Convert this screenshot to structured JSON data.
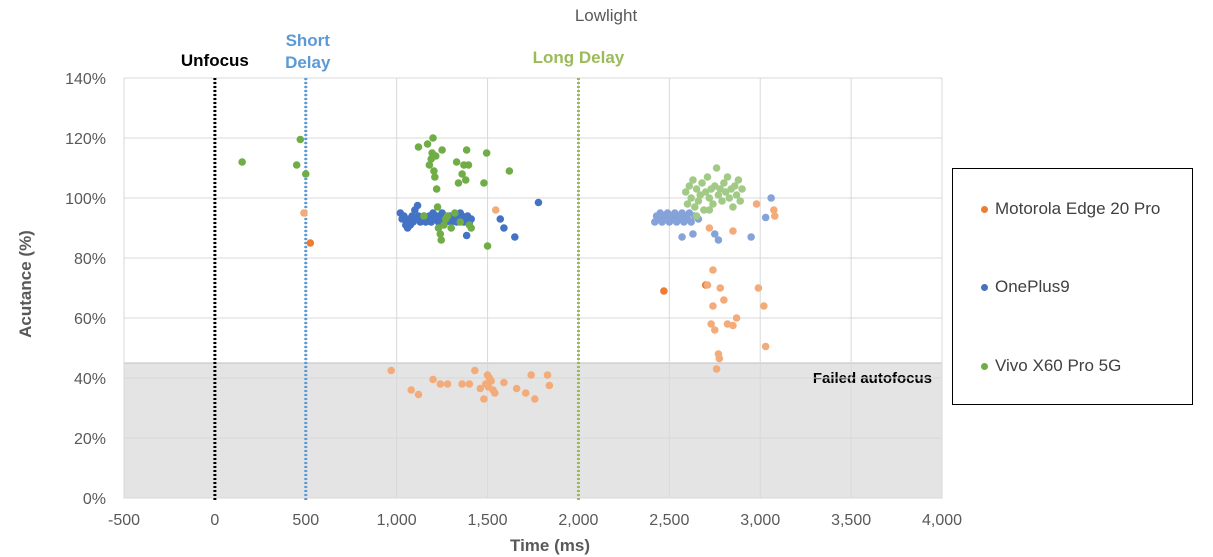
{
  "chart_data": {
    "type": "scatter",
    "title": "Lowlight",
    "xlabel": "Time (ms)",
    "ylabel": "Acutance (%)",
    "xlim": [
      -500,
      4000
    ],
    "ylim": [
      0,
      140
    ],
    "x_ticks": [
      -500,
      0,
      500,
      1000,
      1500,
      2000,
      2500,
      3000,
      3500,
      4000
    ],
    "x_tick_labels": [
      "-500",
      "0",
      "500",
      "1,000",
      "1,500",
      "2,000",
      "2,500",
      "3,000",
      "3,500",
      "4,000"
    ],
    "y_ticks": [
      0,
      20,
      40,
      60,
      80,
      100,
      120,
      140
    ],
    "y_tick_labels": [
      "0%",
      "20%",
      "40%",
      "60%",
      "80%",
      "100%",
      "120%",
      "140%"
    ],
    "grid": true,
    "legend_position": "right",
    "shaded_region": {
      "label": "Failed autofocus",
      "y_from": 0,
      "y_to": 45,
      "color": "#e4e4e4"
    },
    "vertical_lines": [
      {
        "x": 0,
        "label": "Unfocus",
        "color": "#000000"
      },
      {
        "x": 500,
        "label_lines": [
          "Short",
          "Delay"
        ],
        "color": "#5b9bd5"
      },
      {
        "x": 2000,
        "label": "Long Delay",
        "color": "#9bbb59"
      }
    ],
    "series": [
      {
        "name": "Motorola Edge 20 Pro",
        "color": "#ed7d31",
        "points": [
          {
            "x": 490,
            "y": 95,
            "light": true
          },
          {
            "x": 525,
            "y": 85
          },
          {
            "x": 970,
            "y": 42.5,
            "light": true
          },
          {
            "x": 1080,
            "y": 36,
            "light": true
          },
          {
            "x": 1120,
            "y": 34.5,
            "light": true
          },
          {
            "x": 1200,
            "y": 39.5,
            "light": true
          },
          {
            "x": 1240,
            "y": 38,
            "light": true
          },
          {
            "x": 1280,
            "y": 38,
            "light": true
          },
          {
            "x": 1360,
            "y": 38,
            "light": true
          },
          {
            "x": 1400,
            "y": 38,
            "light": true
          },
          {
            "x": 1430,
            "y": 42.5,
            "light": true
          },
          {
            "x": 1460,
            "y": 36.5,
            "light": true
          },
          {
            "x": 1480,
            "y": 33,
            "light": true
          },
          {
            "x": 1490,
            "y": 38,
            "light": true
          },
          {
            "x": 1500,
            "y": 41,
            "light": true
          },
          {
            "x": 1505,
            "y": 37,
            "light": true
          },
          {
            "x": 1510,
            "y": 40,
            "light": true
          },
          {
            "x": 1520,
            "y": 39,
            "light": true
          },
          {
            "x": 1530,
            "y": 36,
            "light": true
          },
          {
            "x": 1540,
            "y": 35,
            "light": true
          },
          {
            "x": 1545,
            "y": 96,
            "light": true
          },
          {
            "x": 1590,
            "y": 38.5,
            "light": true
          },
          {
            "x": 1660,
            "y": 36.5,
            "light": true
          },
          {
            "x": 1710,
            "y": 35,
            "light": true
          },
          {
            "x": 1740,
            "y": 41,
            "light": true
          },
          {
            "x": 1760,
            "y": 33,
            "light": true
          },
          {
            "x": 1830,
            "y": 41,
            "light": true
          },
          {
            "x": 1840,
            "y": 37.5,
            "light": true
          },
          {
            "x": 2470,
            "y": 69
          },
          {
            "x": 2700,
            "y": 71
          },
          {
            "x": 2710,
            "y": 71,
            "light": true
          },
          {
            "x": 2720,
            "y": 90,
            "light": true
          },
          {
            "x": 2730,
            "y": 58,
            "light": true
          },
          {
            "x": 2740,
            "y": 76,
            "light": true
          },
          {
            "x": 2740,
            "y": 64,
            "light": true
          },
          {
            "x": 2750,
            "y": 56,
            "light": true
          },
          {
            "x": 2760,
            "y": 43,
            "light": true
          },
          {
            "x": 2770,
            "y": 48,
            "light": true
          },
          {
            "x": 2775,
            "y": 46.5,
            "light": true
          },
          {
            "x": 2780,
            "y": 70,
            "light": true
          },
          {
            "x": 2800,
            "y": 66,
            "light": true
          },
          {
            "x": 2820,
            "y": 58,
            "light": true
          },
          {
            "x": 2850,
            "y": 57.5,
            "light": true
          },
          {
            "x": 2850,
            "y": 89,
            "light": true
          },
          {
            "x": 2870,
            "y": 60,
            "light": true
          },
          {
            "x": 2990,
            "y": 70,
            "light": true
          },
          {
            "x": 2980,
            "y": 98,
            "light": true
          },
          {
            "x": 3020,
            "y": 64,
            "light": true
          },
          {
            "x": 3030,
            "y": 50.5,
            "light": true
          },
          {
            "x": 3075,
            "y": 96,
            "light": true
          },
          {
            "x": 3080,
            "y": 94,
            "light": true
          }
        ]
      },
      {
        "name": "OnePlus9",
        "color": "#4472c4",
        "points": [
          {
            "x": 1020,
            "y": 95
          },
          {
            "x": 1030,
            "y": 93
          },
          {
            "x": 1040,
            "y": 94
          },
          {
            "x": 1050,
            "y": 91
          },
          {
            "x": 1055,
            "y": 92
          },
          {
            "x": 1060,
            "y": 90
          },
          {
            "x": 1070,
            "y": 93
          },
          {
            "x": 1075,
            "y": 91
          },
          {
            "x": 1085,
            "y": 94
          },
          {
            "x": 1090,
            "y": 92
          },
          {
            "x": 1100,
            "y": 96
          },
          {
            "x": 1110,
            "y": 93
          },
          {
            "x": 1115,
            "y": 97.5
          },
          {
            "x": 1120,
            "y": 94
          },
          {
            "x": 1130,
            "y": 92
          },
          {
            "x": 1140,
            "y": 93
          },
          {
            "x": 1150,
            "y": 94
          },
          {
            "x": 1160,
            "y": 92
          },
          {
            "x": 1170,
            "y": 93
          },
          {
            "x": 1180,
            "y": 94
          },
          {
            "x": 1190,
            "y": 92
          },
          {
            "x": 1200,
            "y": 95
          },
          {
            "x": 1210,
            "y": 93
          },
          {
            "x": 1220,
            "y": 94
          },
          {
            "x": 1230,
            "y": 92
          },
          {
            "x": 1240,
            "y": 93
          },
          {
            "x": 1250,
            "y": 95
          },
          {
            "x": 1260,
            "y": 94
          },
          {
            "x": 1270,
            "y": 92
          },
          {
            "x": 1280,
            "y": 93
          },
          {
            "x": 1290,
            "y": 94
          },
          {
            "x": 1300,
            "y": 92
          },
          {
            "x": 1310,
            "y": 93
          },
          {
            "x": 1320,
            "y": 94
          },
          {
            "x": 1330,
            "y": 92
          },
          {
            "x": 1340,
            "y": 93
          },
          {
            "x": 1350,
            "y": 95
          },
          {
            "x": 1360,
            "y": 94
          },
          {
            "x": 1370,
            "y": 92
          },
          {
            "x": 1380,
            "y": 93
          },
          {
            "x": 1385,
            "y": 87.5
          },
          {
            "x": 1390,
            "y": 94
          },
          {
            "x": 1400,
            "y": 92
          },
          {
            "x": 1410,
            "y": 93
          },
          {
            "x": 1570,
            "y": 93
          },
          {
            "x": 1590,
            "y": 90
          },
          {
            "x": 1650,
            "y": 87
          },
          {
            "x": 1780,
            "y": 98.5
          },
          {
            "x": 2420,
            "y": 92,
            "light": true
          },
          {
            "x": 2430,
            "y": 94,
            "light": true
          },
          {
            "x": 2440,
            "y": 93,
            "light": true
          },
          {
            "x": 2450,
            "y": 95,
            "light": true
          },
          {
            "x": 2460,
            "y": 92,
            "light": true
          },
          {
            "x": 2470,
            "y": 94,
            "light": true
          },
          {
            "x": 2480,
            "y": 93,
            "light": true
          },
          {
            "x": 2490,
            "y": 95,
            "light": true
          },
          {
            "x": 2500,
            "y": 92,
            "light": true
          },
          {
            "x": 2510,
            "y": 94,
            "light": true
          },
          {
            "x": 2520,
            "y": 93,
            "light": true
          },
          {
            "x": 2530,
            "y": 95,
            "light": true
          },
          {
            "x": 2540,
            "y": 92,
            "light": true
          },
          {
            "x": 2550,
            "y": 94,
            "light": true
          },
          {
            "x": 2560,
            "y": 93,
            "light": true
          },
          {
            "x": 2570,
            "y": 95,
            "light": true
          },
          {
            "x": 2580,
            "y": 92,
            "light": true
          },
          {
            "x": 2590,
            "y": 94,
            "light": true
          },
          {
            "x": 2600,
            "y": 93,
            "light": true
          },
          {
            "x": 2610,
            "y": 95,
            "light": true
          },
          {
            "x": 2620,
            "y": 92,
            "light": true
          },
          {
            "x": 2640,
            "y": 94,
            "light": true
          },
          {
            "x": 2660,
            "y": 93,
            "light": true
          },
          {
            "x": 2570,
            "y": 87,
            "light": true
          },
          {
            "x": 2630,
            "y": 88,
            "light": true
          },
          {
            "x": 2750,
            "y": 88,
            "light": true
          },
          {
            "x": 2770,
            "y": 86,
            "light": true
          },
          {
            "x": 2950,
            "y": 87,
            "light": true
          },
          {
            "x": 3030,
            "y": 93.5,
            "light": true
          },
          {
            "x": 3060,
            "y": 100,
            "light": true
          }
        ]
      },
      {
        "name": "Vivo X60 Pro 5G",
        "color": "#70ad47",
        "points": [
          {
            "x": 150,
            "y": 112
          },
          {
            "x": 450,
            "y": 111
          },
          {
            "x": 470,
            "y": 119.5
          },
          {
            "x": 500,
            "y": 108
          },
          {
            "x": 1120,
            "y": 117
          },
          {
            "x": 1150,
            "y": 94
          },
          {
            "x": 1170,
            "y": 118
          },
          {
            "x": 1180,
            "y": 111
          },
          {
            "x": 1190,
            "y": 113
          },
          {
            "x": 1195,
            "y": 115
          },
          {
            "x": 1200,
            "y": 120
          },
          {
            "x": 1205,
            "y": 109
          },
          {
            "x": 1210,
            "y": 107
          },
          {
            "x": 1215,
            "y": 114
          },
          {
            "x": 1220,
            "y": 103
          },
          {
            "x": 1225,
            "y": 97
          },
          {
            "x": 1230,
            "y": 90
          },
          {
            "x": 1240,
            "y": 88
          },
          {
            "x": 1245,
            "y": 86
          },
          {
            "x": 1250,
            "y": 116
          },
          {
            "x": 1260,
            "y": 91
          },
          {
            "x": 1270,
            "y": 93
          },
          {
            "x": 1280,
            "y": 94
          },
          {
            "x": 1300,
            "y": 90
          },
          {
            "x": 1320,
            "y": 95
          },
          {
            "x": 1330,
            "y": 112
          },
          {
            "x": 1340,
            "y": 105
          },
          {
            "x": 1350,
            "y": 92
          },
          {
            "x": 1360,
            "y": 108
          },
          {
            "x": 1370,
            "y": 111
          },
          {
            "x": 1380,
            "y": 106
          },
          {
            "x": 1385,
            "y": 116
          },
          {
            "x": 1395,
            "y": 111
          },
          {
            "x": 1400,
            "y": 91
          },
          {
            "x": 1410,
            "y": 90
          },
          {
            "x": 1480,
            "y": 105
          },
          {
            "x": 1495,
            "y": 115
          },
          {
            "x": 1500,
            "y": 84
          },
          {
            "x": 1620,
            "y": 109
          },
          {
            "x": 2590,
            "y": 102,
            "light": true
          },
          {
            "x": 2600,
            "y": 98,
            "light": true
          },
          {
            "x": 2610,
            "y": 104,
            "light": true
          },
          {
            "x": 2620,
            "y": 100,
            "light": true
          },
          {
            "x": 2630,
            "y": 106,
            "light": true
          },
          {
            "x": 2640,
            "y": 97,
            "light": true
          },
          {
            "x": 2650,
            "y": 103,
            "light": true
          },
          {
            "x": 2660,
            "y": 99,
            "light": true
          },
          {
            "x": 2670,
            "y": 101,
            "light": true
          },
          {
            "x": 2680,
            "y": 105,
            "light": true
          },
          {
            "x": 2690,
            "y": 96,
            "light": true
          },
          {
            "x": 2700,
            "y": 102,
            "light": true
          },
          {
            "x": 2710,
            "y": 107,
            "light": true
          },
          {
            "x": 2720,
            "y": 100,
            "light": true
          },
          {
            "x": 2730,
            "y": 103,
            "light": true
          },
          {
            "x": 2740,
            "y": 98,
            "light": true
          },
          {
            "x": 2750,
            "y": 104,
            "light": true
          },
          {
            "x": 2760,
            "y": 110,
            "light": true
          },
          {
            "x": 2770,
            "y": 101,
            "light": true
          },
          {
            "x": 2780,
            "y": 103,
            "light": true
          },
          {
            "x": 2790,
            "y": 99,
            "light": true
          },
          {
            "x": 2800,
            "y": 105,
            "light": true
          },
          {
            "x": 2810,
            "y": 102,
            "light": true
          },
          {
            "x": 2820,
            "y": 107,
            "light": true
          },
          {
            "x": 2830,
            "y": 100,
            "light": true
          },
          {
            "x": 2840,
            "y": 103,
            "light": true
          },
          {
            "x": 2850,
            "y": 97,
            "light": true
          },
          {
            "x": 2860,
            "y": 104,
            "light": true
          },
          {
            "x": 2870,
            "y": 101,
            "light": true
          },
          {
            "x": 2880,
            "y": 106,
            "light": true
          },
          {
            "x": 2890,
            "y": 99,
            "light": true
          },
          {
            "x": 2900,
            "y": 103,
            "light": true
          },
          {
            "x": 2650,
            "y": 94,
            "light": true
          },
          {
            "x": 2720,
            "y": 96,
            "light": true
          }
        ]
      }
    ]
  }
}
